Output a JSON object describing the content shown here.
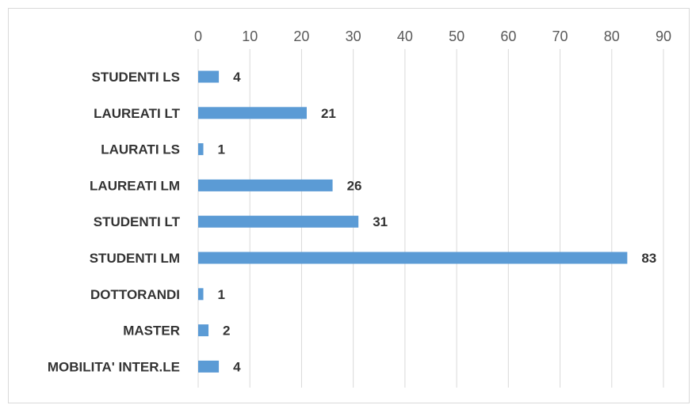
{
  "chart_data": {
    "type": "bar",
    "orientation": "horizontal",
    "categories": [
      "STUDENTI LS",
      "LAUREATI LT",
      "LAURATI LS",
      "LAUREATI LM",
      "STUDENTI LT",
      "STUDENTI LM",
      "DOTTORANDI",
      "MASTER",
      "MOBILITA' INTER.LE"
    ],
    "values": [
      4,
      21,
      1,
      26,
      31,
      83,
      1,
      2,
      4
    ],
    "xlim": [
      0,
      90
    ],
    "x_ticks": [
      0,
      10,
      20,
      30,
      40,
      50,
      60,
      70,
      80,
      90
    ],
    "x_axis_position": "top",
    "grid": true,
    "data_labels": true,
    "bar_color": "#5b9bd5",
    "title": "",
    "xlabel": "",
    "ylabel": ""
  }
}
